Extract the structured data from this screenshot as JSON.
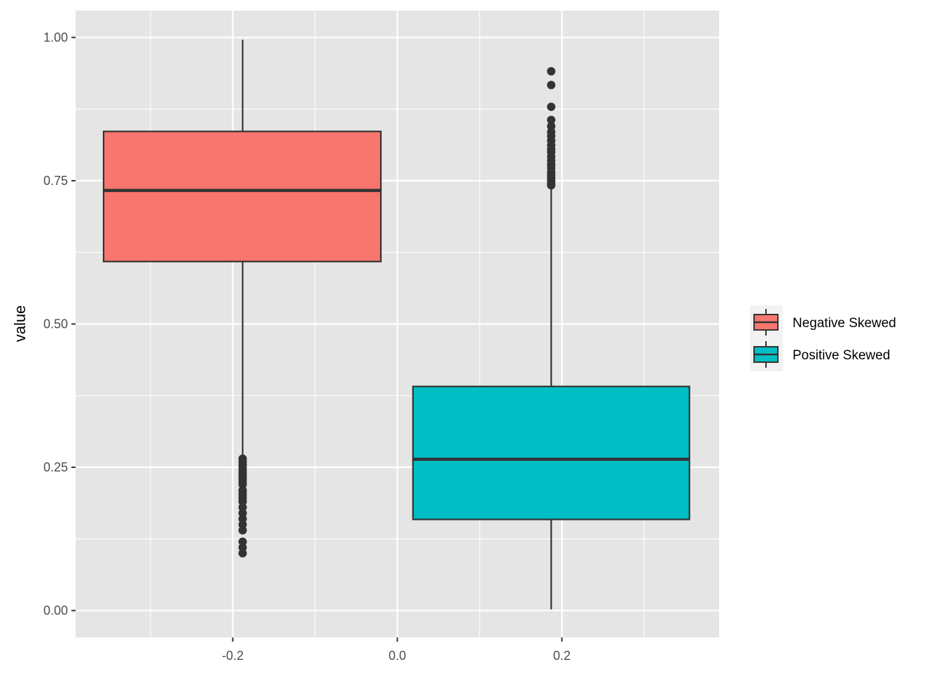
{
  "chart_data": {
    "type": "boxplot",
    "title": "",
    "xlabel": "",
    "ylabel": "value",
    "xlim": [
      -0.391,
      0.391
    ],
    "ylim": [
      -0.047,
      1.047
    ],
    "x_ticks": [
      -0.2,
      0.0,
      0.2
    ],
    "x_tick_labels": [
      "-0.2",
      "0.0",
      "0.2"
    ],
    "y_ticks": [
      0,
      0.25,
      0.5,
      0.75,
      1.0
    ],
    "y_tick_labels": [
      "0.00",
      "0.25",
      "0.50",
      "0.75",
      "1.00"
    ],
    "grid": true,
    "panel_background": "#E5E5E5",
    "legend": {
      "placement": "right",
      "title": ""
    },
    "series": [
      {
        "name": "Negative Skewed",
        "color": "#F8766D",
        "x_center": -0.188,
        "x_range": [
          -0.357,
          -0.02
        ],
        "whisker_low": 0.27,
        "q1": 0.609,
        "median": 0.733,
        "q3": 0.836,
        "whisker_high": 0.996,
        "outliers": [
          0.265,
          0.26,
          0.255,
          0.25,
          0.245,
          0.24,
          0.235,
          0.23,
          0.225,
          0.22,
          0.21,
          0.205,
          0.2,
          0.195,
          0.19,
          0.18,
          0.17,
          0.16,
          0.15,
          0.14,
          0.12,
          0.11,
          0.1
        ]
      },
      {
        "name": "Positive Skewed",
        "color": "#00BFC4",
        "x_center": 0.187,
        "x_range": [
          0.019,
          0.355
        ],
        "whisker_low": 0.002,
        "q1": 0.159,
        "median": 0.264,
        "q3": 0.391,
        "whisker_high": 0.738,
        "outliers": [
          0.941,
          0.917,
          0.879,
          0.856,
          0.845,
          0.835,
          0.828,
          0.82,
          0.812,
          0.805,
          0.8,
          0.792,
          0.785,
          0.778,
          0.772,
          0.765,
          0.76,
          0.755,
          0.75,
          0.745,
          0.742
        ]
      }
    ]
  }
}
